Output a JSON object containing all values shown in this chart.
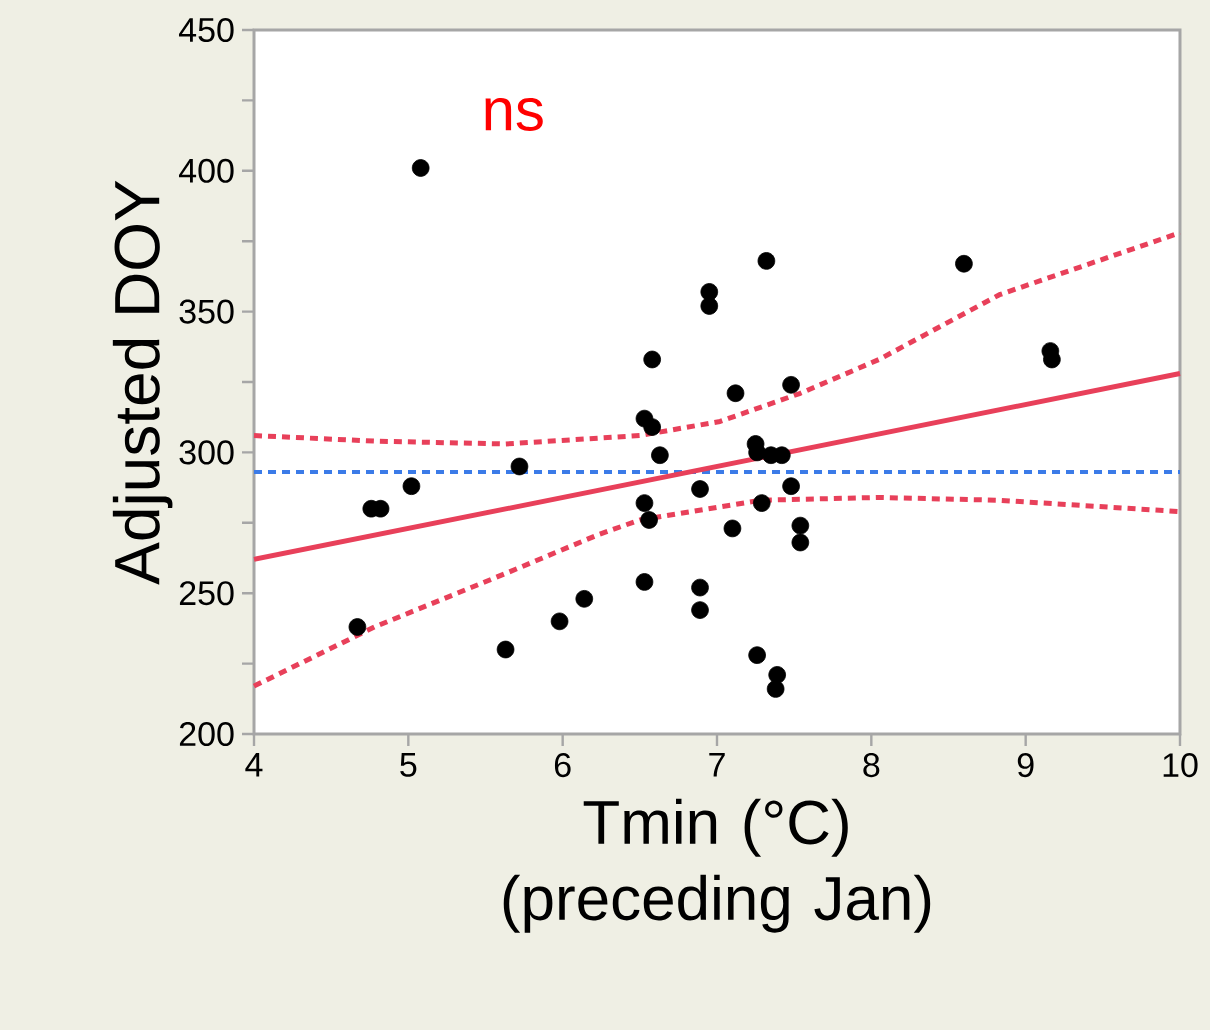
{
  "chart_data": {
    "type": "scatter",
    "xlabel": "Tmin (°C) (preceding Jan)",
    "ylabel": "Adjusted DOY",
    "annotations": [
      "ns"
    ],
    "xlim": [
      4,
      10
    ],
    "ylim": [
      200,
      450
    ],
    "xticks": [
      4,
      5,
      6,
      7,
      8,
      9,
      10
    ],
    "yticks": [
      200,
      {
        "value": 225,
        "label": null
      },
      250,
      {
        "value": 275,
        "label": null
      },
      300,
      {
        "value": 325,
        "label": null
      },
      350,
      {
        "value": 375,
        "label": null
      },
      400,
      {
        "value": 425,
        "label": null
      },
      450
    ],
    "grid": false,
    "ref_lines": [
      {
        "axis": "y",
        "value": 293,
        "color": "#3b7be8",
        "line_style": "dashed"
      }
    ],
    "series": [
      {
        "color": "#000000",
        "marker": "circle",
        "x": [
          5.08,
          7.32,
          6.95,
          6.95,
          6.58,
          7.12,
          7.48,
          6.53,
          6.58,
          6.63,
          7.25,
          7.26,
          7.35,
          7.42,
          5.72,
          5.02,
          4.76,
          4.82,
          6.89,
          7.48,
          6.53,
          6.56,
          7.29,
          7.1,
          7.54,
          7.54,
          4.67,
          5.63,
          5.98,
          6.14,
          6.53,
          6.89,
          6.89,
          7.26,
          7.39,
          7.38,
          8.6,
          9.16,
          9.17
        ],
        "values": [
          401,
          368,
          357,
          352,
          333,
          321,
          324,
          312,
          309,
          299,
          303,
          300,
          299,
          299,
          295,
          288,
          280,
          280,
          287,
          288,
          282,
          276,
          282,
          273,
          274,
          268,
          238,
          230,
          240,
          248,
          254,
          252,
          244,
          228,
          221,
          216,
          367,
          336,
          333
        ]
      },
      {
        "type": "line",
        "color": "#e8405a",
        "marker": "none",
        "line_style": "solid",
        "x": [
          4,
          10
        ],
        "values": [
          262,
          328
        ]
      },
      {
        "type": "line",
        "color": "#e8405a",
        "marker": "none",
        "line_style": "dashed",
        "x": [
          4,
          4.78,
          5.63,
          6.5,
          7.02,
          7.54,
          8.05,
          8.83,
          10
        ],
        "values": [
          306,
          304,
          303,
          306,
          311,
          321,
          333,
          356,
          378
        ]
      },
      {
        "type": "line",
        "color": "#e8405a",
        "marker": "none",
        "line_style": "dashed",
        "x": [
          4,
          4.78,
          5.63,
          6.24,
          6.5,
          7.28,
          8.05,
          8.83,
          10
        ],
        "values": [
          217,
          238,
          257,
          271,
          276,
          283,
          284,
          283,
          279
        ]
      }
    ]
  }
}
